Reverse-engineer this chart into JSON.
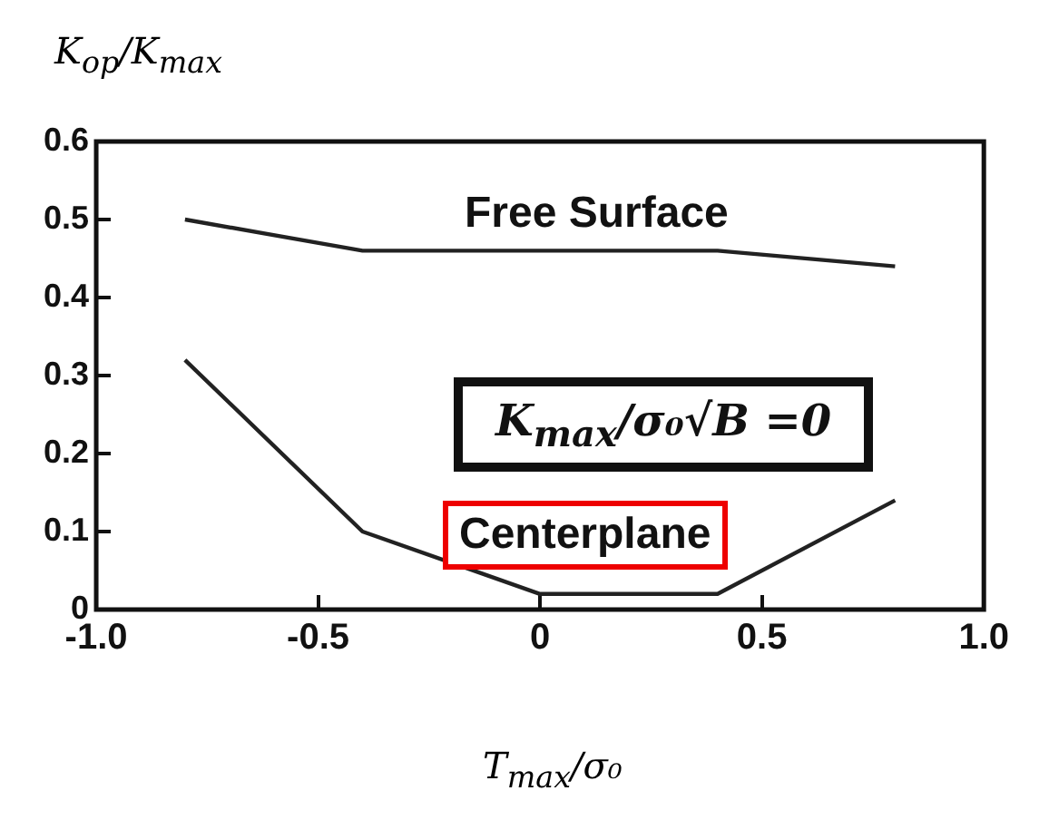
{
  "chart_data": {
    "type": "line",
    "xlabel": "T$_{max}$/σ₀",
    "ylabel": "K$_{op}$/K$_{max}$",
    "x": [
      -0.8,
      -0.4,
      0,
      0.4,
      0.8
    ],
    "series": [
      {
        "name": "Free Surface",
        "color": "#222222",
        "values": [
          0.5,
          0.46,
          0.46,
          0.46,
          0.44
        ]
      },
      {
        "name": "Centerplane",
        "color": "#222222",
        "values": [
          0.32,
          0.1,
          0.02,
          0.02,
          0.14
        ]
      }
    ],
    "annotations": [
      "K$_{max}$/σ₀√B =0"
    ],
    "xlim": [
      -1,
      1
    ],
    "xticks": [
      {
        "value": -1,
        "label": "-1.0"
      },
      -0.5,
      0,
      0.5,
      {
        "value": 1,
        "label": "1.0"
      }
    ],
    "ylim": [
      0,
      0.6
    ],
    "yticks": [
      0,
      0.1,
      0.2,
      0.3,
      0.4,
      0.5,
      0.6
    ],
    "grid": false,
    "legend": false,
    "marker": "none",
    "line_style": "solid"
  }
}
